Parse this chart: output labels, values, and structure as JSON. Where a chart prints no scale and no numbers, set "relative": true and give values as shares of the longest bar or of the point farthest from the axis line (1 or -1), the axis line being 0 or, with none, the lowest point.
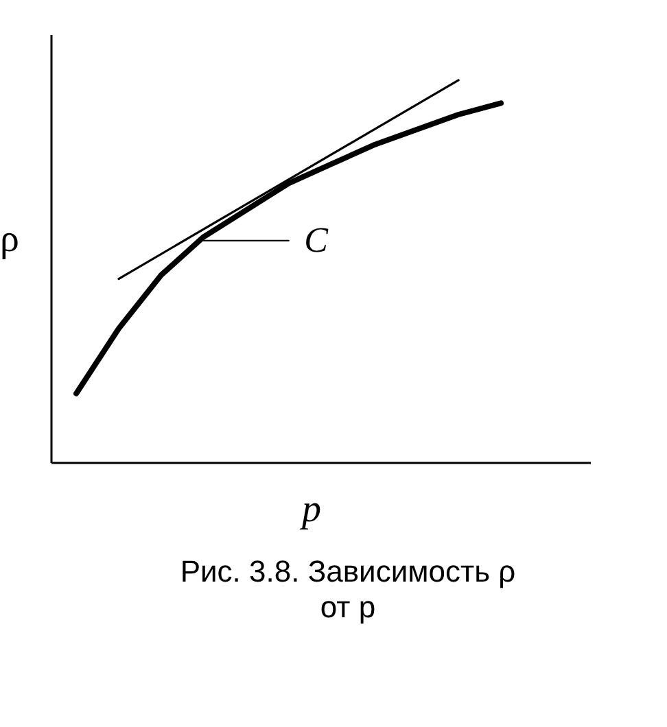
{
  "chart_data": {
    "type": "line",
    "relative": true,
    "xlabel": "p",
    "ylabel": "ρ",
    "categories": [
      null,
      null,
      null,
      null,
      null,
      null,
      null,
      null,
      null,
      null,
      null
    ],
    "series": [
      {
        "color": "#000000",
        "values": [
          0.18,
          0.35,
          0.49,
          0.59,
          0.66,
          0.73,
          0.78,
          0.83,
          0.87,
          0.91,
          0.94
        ]
      },
      {
        "color": "#000000",
        "values": [
          null,
          0.48,
          null,
          null,
          null,
          null,
          null,
          null,
          null,
          1.0,
          null
        ]
      },
      {
        "color": "#000000",
        "values": [
          null,
          null,
          null,
          0.58,
          0.58,
          0.58,
          null,
          null,
          null,
          null,
          null
        ]
      }
    ],
    "annotations": [
      "C",
      "Рис. 3.8. Зависимость ρ от p"
    ],
    "grid": false,
    "marker": "none",
    "line_style": "solid",
    "tick_labels": false
  }
}
